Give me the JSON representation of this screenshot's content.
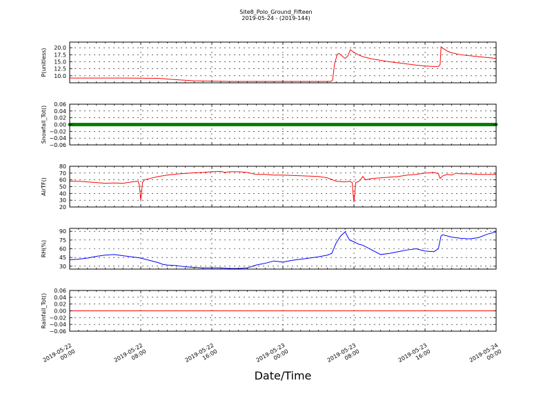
{
  "figure": {
    "title_line1": "Site8_Polo_Ground_Fifteen",
    "title_line2": "2019-05-24 - (2019-144)",
    "xlabel": "Date/Time",
    "x_ticks": [
      {
        "l1": "2019-05-22",
        "l2": "00:00",
        "hour": 0
      },
      {
        "l1": "2019-05-22",
        "l2": "08:00",
        "hour": 8
      },
      {
        "l1": "2019-05-22",
        "l2": "16:00",
        "hour": 16
      },
      {
        "l1": "2019-05-23",
        "l2": "00:00",
        "hour": 24
      },
      {
        "l1": "2019-05-23",
        "l2": "08:00",
        "hour": 32
      },
      {
        "l1": "2019-05-23",
        "l2": "16:00",
        "hour": 40
      },
      {
        "l1": "2019-05-24",
        "l2": "00:00",
        "hour": 48
      }
    ]
  },
  "chart_data": [
    {
      "type": "line",
      "ylabel": "P(unitless)",
      "ylim": [
        7.5,
        22
      ],
      "yticks": [
        10.0,
        12.5,
        15.0,
        17.5,
        20.0
      ],
      "ytick_labels": [
        "10.0",
        "12.5",
        "15.0",
        "17.5",
        "20.0"
      ],
      "color": "#ff0000",
      "x_unit": "hours since 2019-05-22 00:00",
      "points": [
        [
          0,
          9.2
        ],
        [
          6,
          9.2
        ],
        [
          10,
          9.1
        ],
        [
          12,
          8.6
        ],
        [
          14,
          8.2
        ],
        [
          18,
          8.0
        ],
        [
          26,
          8.0
        ],
        [
          29.4,
          8.0
        ],
        [
          29.6,
          8.5
        ],
        [
          29.8,
          14
        ],
        [
          30.1,
          17.5
        ],
        [
          30.3,
          18
        ],
        [
          30.6,
          17.2
        ],
        [
          31,
          16.2
        ],
        [
          31.3,
          17
        ],
        [
          31.6,
          19.3
        ],
        [
          32,
          18.3
        ],
        [
          32.5,
          17.5
        ],
        [
          33,
          16.8
        ],
        [
          34,
          16
        ],
        [
          36,
          15
        ],
        [
          38,
          14.2
        ],
        [
          39,
          13.8
        ],
        [
          40,
          13.5
        ],
        [
          41,
          13.3
        ],
        [
          41.5,
          13.3
        ],
        [
          41.7,
          14
        ],
        [
          41.8,
          20.3
        ],
        [
          42,
          19.8
        ],
        [
          42.5,
          18.8
        ],
        [
          43,
          18.2
        ],
        [
          44,
          17.5
        ],
        [
          46,
          16.8
        ],
        [
          47,
          16.5
        ],
        [
          48,
          16.2
        ]
      ]
    },
    {
      "type": "scatter",
      "ylabel": "Snowfall_Tot()",
      "ylim": [
        -0.06,
        0.06
      ],
      "yticks": [
        -0.06,
        -0.04,
        -0.02,
        0.0,
        0.02,
        0.04,
        0.06
      ],
      "ytick_labels": [
        "−0.06",
        "−0.04",
        "−0.02",
        "0.00",
        "0.02",
        "0.04",
        "0.06"
      ],
      "color": "#008000",
      "x_range": [
        0,
        48
      ],
      "constant_value": 0.0
    },
    {
      "type": "line",
      "ylabel": "AirTF()",
      "ylim": [
        20,
        80
      ],
      "yticks": [
        20,
        30,
        40,
        50,
        60,
        70,
        80
      ],
      "ytick_labels": [
        "20",
        "30",
        "40",
        "50",
        "60",
        "70",
        "80"
      ],
      "color": "#ff0000",
      "x_unit": "hours since 2019-05-22 00:00",
      "points": [
        [
          0,
          58
        ],
        [
          1,
          58
        ],
        [
          2,
          57
        ],
        [
          3,
          56
        ],
        [
          4,
          55
        ],
        [
          5,
          55.5
        ],
        [
          6,
          55
        ],
        [
          7,
          57
        ],
        [
          7.7,
          58
        ],
        [
          7.85,
          52
        ],
        [
          8,
          30
        ],
        [
          8.2,
          56
        ],
        [
          8.4,
          60
        ],
        [
          9,
          62
        ],
        [
          10,
          65
        ],
        [
          11,
          67
        ],
        [
          12,
          68.5
        ],
        [
          13,
          69.5
        ],
        [
          14,
          70.5
        ],
        [
          15,
          71
        ],
        [
          16,
          72
        ],
        [
          17,
          72.5
        ],
        [
          17.5,
          71
        ],
        [
          18,
          72
        ],
        [
          19,
          72
        ],
        [
          20,
          71
        ],
        [
          21,
          68
        ],
        [
          22,
          68
        ],
        [
          23,
          67
        ],
        [
          24,
          67
        ],
        [
          25,
          66.5
        ],
        [
          26,
          66
        ],
        [
          27,
          65.5
        ],
        [
          28,
          65
        ],
        [
          29,
          63
        ],
        [
          30,
          58
        ],
        [
          31,
          57
        ],
        [
          31.5,
          58
        ],
        [
          31.8,
          56
        ],
        [
          31.9,
          40
        ],
        [
          32,
          27
        ],
        [
          32.2,
          56
        ],
        [
          32.6,
          58
        ],
        [
          33,
          65
        ],
        [
          33.3,
          60
        ],
        [
          34,
          62
        ],
        [
          35,
          63
        ],
        [
          36,
          64
        ],
        [
          37,
          65
        ],
        [
          38,
          67
        ],
        [
          39,
          68
        ],
        [
          40,
          70
        ],
        [
          41,
          71
        ],
        [
          41.5,
          69
        ],
        [
          41.7,
          62
        ],
        [
          42,
          66
        ],
        [
          42.5,
          68
        ],
        [
          43,
          67
        ],
        [
          43.5,
          70
        ],
        [
          44,
          69
        ],
        [
          45,
          69
        ],
        [
          46,
          68
        ],
        [
          47,
          68
        ],
        [
          48,
          68
        ]
      ]
    },
    {
      "type": "line",
      "ylabel": "RH(%)",
      "ylim": [
        25,
        95
      ],
      "yticks": [
        30,
        45,
        60,
        75,
        90
      ],
      "ytick_labels": [
        "30",
        "45",
        "60",
        "75",
        "90"
      ],
      "color": "#0000ff",
      "x_unit": "hours since 2019-05-22 00:00",
      "points": [
        [
          0,
          41
        ],
        [
          1,
          42
        ],
        [
          2,
          44
        ],
        [
          3,
          47
        ],
        [
          4,
          49
        ],
        [
          5,
          50
        ],
        [
          6,
          48
        ],
        [
          7,
          46
        ],
        [
          8,
          44
        ],
        [
          9,
          40
        ],
        [
          10,
          36
        ],
        [
          10.5,
          33
        ],
        [
          11,
          32
        ],
        [
          12,
          31
        ],
        [
          13,
          29
        ],
        [
          14,
          28
        ],
        [
          15,
          27
        ],
        [
          16,
          27
        ],
        [
          17,
          27
        ],
        [
          18,
          26
        ],
        [
          19,
          26
        ],
        [
          20,
          27
        ],
        [
          21,
          32
        ],
        [
          22,
          35
        ],
        [
          23,
          39
        ],
        [
          24,
          37
        ],
        [
          25,
          40
        ],
        [
          26,
          42
        ],
        [
          27,
          44
        ],
        [
          28,
          46
        ],
        [
          29,
          49
        ],
        [
          29.5,
          52
        ],
        [
          30,
          70
        ],
        [
          30.5,
          82
        ],
        [
          31,
          89
        ],
        [
          31.5,
          75
        ],
        [
          32,
          72
        ],
        [
          32.5,
          68
        ],
        [
          33,
          66
        ],
        [
          34,
          58
        ],
        [
          35,
          50
        ],
        [
          36,
          52
        ],
        [
          37,
          55
        ],
        [
          38,
          58
        ],
        [
          39,
          60
        ],
        [
          40,
          56
        ],
        [
          41,
          55
        ],
        [
          41.5,
          60
        ],
        [
          41.8,
          82
        ],
        [
          42,
          84
        ],
        [
          43,
          80
        ],
        [
          44,
          78
        ],
        [
          45,
          77
        ],
        [
          46,
          79
        ],
        [
          47,
          85
        ],
        [
          48,
          89
        ]
      ]
    },
    {
      "type": "line",
      "ylabel": "Rainfall_Tot()",
      "ylim": [
        -0.06,
        0.06
      ],
      "yticks": [
        -0.06,
        -0.04,
        -0.02,
        0.0,
        0.02,
        0.04,
        0.06
      ],
      "ytick_labels": [
        "−0.06",
        "−0.04",
        "−0.02",
        "0.00",
        "0.02",
        "0.04",
        "0.06"
      ],
      "color": "#ff0000",
      "x_range": [
        0,
        48
      ],
      "constant_value": 0.0
    }
  ]
}
